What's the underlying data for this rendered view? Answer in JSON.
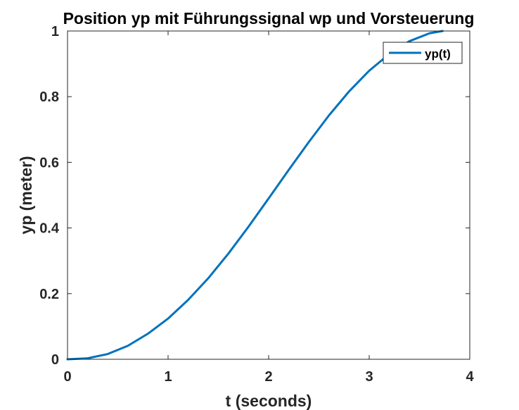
{
  "chart_data": {
    "type": "line",
    "title": "Position yp mit Führungssignal wp und Vorsteuerung",
    "xlabel": "t (seconds)",
    "ylabel": "yp (meter)",
    "xlim": [
      0,
      4
    ],
    "ylim": [
      0,
      1
    ],
    "xticks": [
      0,
      1,
      2,
      3,
      4
    ],
    "xtick_labels": [
      "0",
      "1",
      "2",
      "3",
      "4"
    ],
    "yticks": [
      0,
      0.2,
      0.4,
      0.6,
      0.8,
      1
    ],
    "ytick_labels": [
      "0",
      "0.2",
      "0.4",
      "0.6",
      "0.8",
      "1"
    ],
    "grid": true,
    "legend_position": "top-right",
    "series": [
      {
        "name": "yp(t)",
        "color": "#0072BD",
        "x": [
          0,
          0.2,
          0.4,
          0.6,
          0.8,
          1.0,
          1.2,
          1.4,
          1.6,
          1.8,
          2.0,
          2.2,
          2.4,
          2.6,
          2.8,
          3.0,
          3.2,
          3.4,
          3.6,
          3.73
        ],
        "y": [
          0,
          0.003,
          0.016,
          0.041,
          0.078,
          0.124,
          0.181,
          0.247,
          0.322,
          0.404,
          0.49,
          0.577,
          0.662,
          0.743,
          0.816,
          0.879,
          0.93,
          0.969,
          0.993,
          1.0
        ]
      }
    ]
  }
}
